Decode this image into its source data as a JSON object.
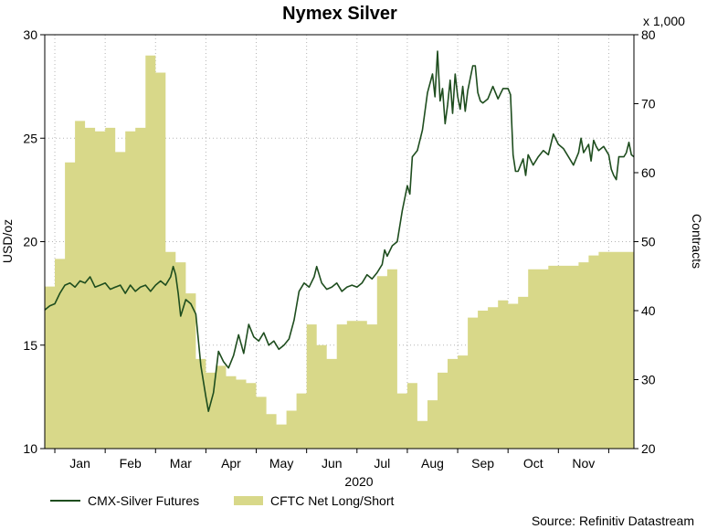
{
  "chart_data": {
    "type": "line",
    "title": "Nymex Silver",
    "xlabel": "2020",
    "ylabel_left": "USD/oz",
    "ylabel_right": "Contracts",
    "right_multiplier": "x 1,000",
    "source": "Source: Refinitiv Datastream",
    "months": [
      "Jan",
      "Feb",
      "Mar",
      "Apr",
      "May",
      "Jun",
      "Jul",
      "Aug",
      "Sep",
      "Oct",
      "Nov"
    ],
    "x_range": [
      -0.2,
      11.5
    ],
    "y_left": {
      "min": 10,
      "max": 30,
      "ticks": [
        10,
        15,
        20,
        25,
        30
      ]
    },
    "y_right": {
      "min": 20,
      "max": 80,
      "ticks": [
        20,
        30,
        40,
        50,
        60,
        70,
        80
      ]
    },
    "series": [
      {
        "name": "CMX-Silver Futures",
        "axis": "left",
        "color": "#1e4d1e",
        "points": [
          [
            -0.2,
            16.7
          ],
          [
            -0.1,
            16.9
          ],
          [
            0.0,
            17.0
          ],
          [
            0.1,
            17.5
          ],
          [
            0.2,
            17.9
          ],
          [
            0.3,
            18.0
          ],
          [
            0.4,
            17.8
          ],
          [
            0.5,
            18.1
          ],
          [
            0.6,
            18.0
          ],
          [
            0.7,
            18.3
          ],
          [
            0.8,
            17.8
          ],
          [
            0.9,
            17.9
          ],
          [
            1.0,
            18.0
          ],
          [
            1.1,
            17.7
          ],
          [
            1.2,
            17.8
          ],
          [
            1.3,
            17.9
          ],
          [
            1.4,
            17.5
          ],
          [
            1.5,
            17.9
          ],
          [
            1.6,
            17.6
          ],
          [
            1.7,
            17.8
          ],
          [
            1.8,
            17.9
          ],
          [
            1.9,
            17.6
          ],
          [
            2.0,
            17.9
          ],
          [
            2.1,
            18.1
          ],
          [
            2.2,
            17.9
          ],
          [
            2.3,
            18.3
          ],
          [
            2.35,
            18.8
          ],
          [
            2.4,
            18.4
          ],
          [
            2.45,
            17.5
          ],
          [
            2.5,
            16.4
          ],
          [
            2.6,
            17.2
          ],
          [
            2.7,
            17.0
          ],
          [
            2.8,
            16.5
          ],
          [
            2.9,
            14.0
          ],
          [
            3.0,
            12.5
          ],
          [
            3.05,
            11.8
          ],
          [
            3.15,
            12.7
          ],
          [
            3.25,
            14.7
          ],
          [
            3.35,
            14.2
          ],
          [
            3.45,
            13.9
          ],
          [
            3.55,
            14.5
          ],
          [
            3.65,
            15.5
          ],
          [
            3.75,
            14.6
          ],
          [
            3.85,
            16.0
          ],
          [
            3.95,
            15.4
          ],
          [
            4.05,
            15.2
          ],
          [
            4.15,
            15.6
          ],
          [
            4.25,
            15.0
          ],
          [
            4.35,
            15.2
          ],
          [
            4.45,
            14.8
          ],
          [
            4.55,
            15.0
          ],
          [
            4.65,
            15.3
          ],
          [
            4.75,
            16.2
          ],
          [
            4.85,
            17.6
          ],
          [
            4.95,
            18.0
          ],
          [
            5.05,
            17.8
          ],
          [
            5.15,
            18.3
          ],
          [
            5.2,
            18.8
          ],
          [
            5.3,
            18.0
          ],
          [
            5.4,
            17.7
          ],
          [
            5.5,
            17.8
          ],
          [
            5.6,
            18.0
          ],
          [
            5.7,
            17.6
          ],
          [
            5.8,
            17.8
          ],
          [
            5.9,
            17.9
          ],
          [
            6.0,
            17.8
          ],
          [
            6.1,
            18.0
          ],
          [
            6.2,
            18.4
          ],
          [
            6.3,
            18.2
          ],
          [
            6.4,
            18.5
          ],
          [
            6.5,
            18.9
          ],
          [
            6.55,
            19.6
          ],
          [
            6.6,
            19.3
          ],
          [
            6.7,
            19.8
          ],
          [
            6.8,
            20.0
          ],
          [
            6.9,
            21.5
          ],
          [
            7.0,
            22.7
          ],
          [
            7.05,
            22.3
          ],
          [
            7.1,
            24.1
          ],
          [
            7.2,
            24.4
          ],
          [
            7.3,
            25.4
          ],
          [
            7.4,
            27.2
          ],
          [
            7.5,
            28.1
          ],
          [
            7.55,
            27.0
          ],
          [
            7.6,
            29.2
          ],
          [
            7.65,
            26.8
          ],
          [
            7.7,
            27.4
          ],
          [
            7.75,
            25.7
          ],
          [
            7.8,
            26.6
          ],
          [
            7.85,
            27.8
          ],
          [
            7.9,
            26.2
          ],
          [
            7.95,
            28.1
          ],
          [
            8.0,
            27.0
          ],
          [
            8.05,
            26.4
          ],
          [
            8.1,
            27.5
          ],
          [
            8.15,
            26.3
          ],
          [
            8.2,
            27.3
          ],
          [
            8.3,
            28.5
          ],
          [
            8.35,
            28.5
          ],
          [
            8.4,
            27.2
          ],
          [
            8.45,
            26.8
          ],
          [
            8.5,
            26.7
          ],
          [
            8.6,
            26.9
          ],
          [
            8.7,
            27.5
          ],
          [
            8.8,
            26.9
          ],
          [
            8.9,
            27.4
          ],
          [
            9.0,
            27.4
          ],
          [
            9.05,
            27.1
          ],
          [
            9.1,
            24.2
          ],
          [
            9.15,
            23.4
          ],
          [
            9.2,
            23.4
          ],
          [
            9.3,
            24.0
          ],
          [
            9.35,
            23.2
          ],
          [
            9.4,
            24.2
          ],
          [
            9.5,
            23.7
          ],
          [
            9.6,
            24.1
          ],
          [
            9.7,
            24.4
          ],
          [
            9.8,
            24.2
          ],
          [
            9.9,
            25.2
          ],
          [
            10.0,
            24.7
          ],
          [
            10.1,
            24.5
          ],
          [
            10.2,
            24.1
          ],
          [
            10.3,
            23.7
          ],
          [
            10.4,
            24.3
          ],
          [
            10.45,
            25.0
          ],
          [
            10.5,
            24.3
          ],
          [
            10.6,
            24.7
          ],
          [
            10.65,
            23.9
          ],
          [
            10.7,
            24.9
          ],
          [
            10.75,
            24.6
          ],
          [
            10.8,
            24.4
          ],
          [
            10.9,
            24.6
          ],
          [
            11.0,
            24.2
          ],
          [
            11.05,
            23.5
          ],
          [
            11.1,
            23.2
          ],
          [
            11.15,
            23.0
          ],
          [
            11.2,
            24.1
          ],
          [
            11.3,
            24.1
          ],
          [
            11.35,
            24.3
          ],
          [
            11.4,
            24.8
          ],
          [
            11.45,
            24.2
          ],
          [
            11.5,
            24.1
          ]
        ]
      },
      {
        "name": "CFTC Net Long/Short",
        "axis": "right",
        "color": "#d8d889",
        "points": [
          [
            -0.2,
            43.5
          ],
          [
            0.0,
            47.5
          ],
          [
            0.2,
            61.5
          ],
          [
            0.4,
            67.5
          ],
          [
            0.6,
            66.5
          ],
          [
            0.8,
            66.0
          ],
          [
            1.0,
            66.5
          ],
          [
            1.2,
            63.0
          ],
          [
            1.4,
            66.0
          ],
          [
            1.6,
            66.5
          ],
          [
            1.8,
            77.0
          ],
          [
            2.0,
            74.5
          ],
          [
            2.2,
            48.5
          ],
          [
            2.4,
            47.0
          ],
          [
            2.6,
            42.5
          ],
          [
            2.8,
            33.0
          ],
          [
            3.0,
            31.0
          ],
          [
            3.2,
            32.0
          ],
          [
            3.4,
            30.5
          ],
          [
            3.6,
            30.0
          ],
          [
            3.8,
            29.5
          ],
          [
            4.0,
            27.5
          ],
          [
            4.2,
            25.0
          ],
          [
            4.4,
            23.5
          ],
          [
            4.6,
            25.5
          ],
          [
            4.8,
            28.0
          ],
          [
            5.0,
            38.0
          ],
          [
            5.2,
            35.0
          ],
          [
            5.4,
            33.0
          ],
          [
            5.6,
            38.0
          ],
          [
            5.8,
            38.5
          ],
          [
            6.0,
            38.5
          ],
          [
            6.2,
            38.0
          ],
          [
            6.4,
            45.0
          ],
          [
            6.6,
            46.0
          ],
          [
            6.8,
            28.0
          ],
          [
            7.0,
            29.5
          ],
          [
            7.2,
            24.0
          ],
          [
            7.4,
            27.0
          ],
          [
            7.6,
            31.0
          ],
          [
            7.8,
            33.0
          ],
          [
            8.0,
            33.5
          ],
          [
            8.2,
            39.0
          ],
          [
            8.4,
            40.0
          ],
          [
            8.6,
            40.5
          ],
          [
            8.8,
            41.5
          ],
          [
            9.0,
            41.0
          ],
          [
            9.2,
            42.0
          ],
          [
            9.4,
            46.0
          ],
          [
            9.6,
            46.0
          ],
          [
            9.8,
            46.5
          ],
          [
            10.0,
            46.5
          ],
          [
            10.2,
            46.5
          ],
          [
            10.4,
            47.0
          ],
          [
            10.6,
            48.0
          ],
          [
            10.8,
            48.5
          ],
          [
            11.0,
            48.5
          ],
          [
            11.5,
            48.5
          ]
        ]
      }
    ],
    "legend_position": "bottom-left"
  }
}
